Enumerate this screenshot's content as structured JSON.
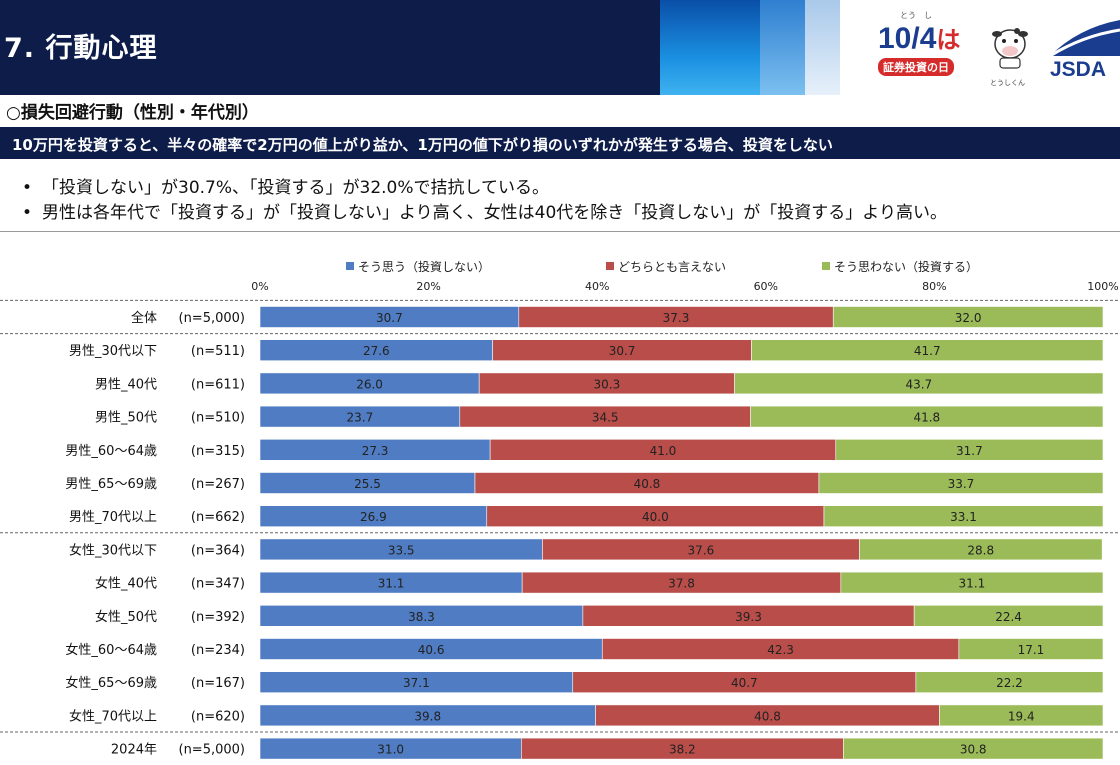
{
  "header": {
    "title": "7. 行動心理",
    "logo_date": "10/4",
    "logo_ha": "は",
    "logo_ruby": "とう　し",
    "logo_sub": "証券投資の日",
    "mascot_label": "とうしくん",
    "jsda": "JSDA"
  },
  "section": {
    "title": "○損失回避行動（性別・年代別）",
    "question": "10万円を投資すると、半々の確率で2万円の値上がり益か、1万円の値下がり損のいずれかが発生する場合、投資をしない",
    "bullets": [
      "「投資しない」が30.7%、「投資する」が32.0%で拮抗している。",
      "男性は各年代で「投資する」が「投資しない」より高く、女性は40代を除き「投資しない」が「投資する」より高い。"
    ],
    "bullet_mark": "•"
  },
  "colors": {
    "series1": "#4f7cc2",
    "series2": "#b84d4a",
    "series3": "#9bbb59",
    "header_bg": "#0e1c4a"
  },
  "chart_data": {
    "type": "bar",
    "orientation": "horizontal-stacked-100",
    "xlim": [
      0,
      100
    ],
    "ticks": [
      "0%",
      "20%",
      "40%",
      "60%",
      "80%",
      "100%"
    ],
    "legend_position": "top",
    "series": [
      {
        "name": "そう思う（投資しない）",
        "values": [
          30.7,
          27.6,
          26.0,
          23.7,
          27.3,
          25.5,
          26.9,
          33.5,
          31.1,
          38.3,
          40.6,
          37.1,
          39.8,
          31.0
        ]
      },
      {
        "name": "どちらとも言えない",
        "values": [
          37.3,
          30.7,
          30.3,
          34.5,
          41.0,
          40.8,
          40.0,
          37.6,
          37.8,
          39.3,
          42.3,
          40.7,
          40.8,
          38.2
        ]
      },
      {
        "name": "そう思わない（投資する）",
        "values": [
          32.0,
          41.7,
          43.7,
          41.8,
          31.7,
          33.7,
          33.1,
          28.8,
          31.1,
          22.4,
          17.1,
          22.2,
          19.4,
          30.8
        ]
      }
    ],
    "categories": [
      {
        "label": "全体",
        "n": "(n=5,000)"
      },
      {
        "label": "男性_30代以下",
        "n": "(n=511)"
      },
      {
        "label": "男性_40代",
        "n": "(n=611)"
      },
      {
        "label": "男性_50代",
        "n": "(n=510)"
      },
      {
        "label": "男性_60～64歳",
        "n": "(n=315)"
      },
      {
        "label": "男性_65～69歳",
        "n": "(n=267)"
      },
      {
        "label": "男性_70代以上",
        "n": "(n=662)"
      },
      {
        "label": "女性_30代以下",
        "n": "(n=364)"
      },
      {
        "label": "女性_40代",
        "n": "(n=347)"
      },
      {
        "label": "女性_50代",
        "n": "(n=392)"
      },
      {
        "label": "女性_60～64歳",
        "n": "(n=234)"
      },
      {
        "label": "女性_65～69歳",
        "n": "(n=167)"
      },
      {
        "label": "女性_70代以上",
        "n": "(n=620)"
      },
      {
        "label": "2024年",
        "n": "(n=5,000)"
      }
    ],
    "group_breaks_after": [
      0,
      6,
      12
    ]
  }
}
